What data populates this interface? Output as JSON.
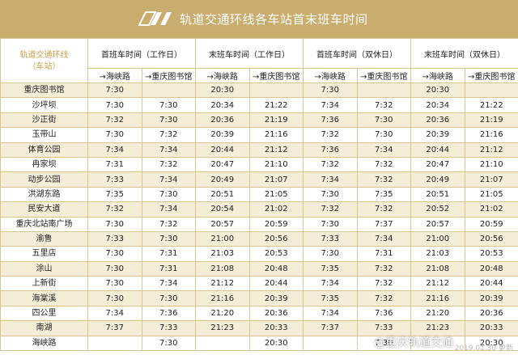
{
  "header": {
    "title": "轨道交通环线各车站首末班车时间"
  },
  "table": {
    "corner_title": "轨道交通环线",
    "corner_sub": "（车站）",
    "groups": [
      "首班车时间（工作日）",
      "末班车时间（工作日）",
      "首班车时间（双休日）",
      "末班车时间（双休日）"
    ],
    "directions": [
      "→海峡路",
      "→重庆图书馆"
    ],
    "rows": [
      [
        "重庆图书馆",
        "7:30",
        "",
        "20:30",
        "",
        "7:30",
        "",
        "20:30",
        ""
      ],
      [
        "沙坪坝",
        "7:30",
        "7:30",
        "20:34",
        "21:22",
        "7:34",
        "7:32",
        "20:34",
        "21:22"
      ],
      [
        "沙正街",
        "7:32",
        "7:30",
        "20:36",
        "21:19",
        "7:36",
        "7:30",
        "20:36",
        "21:19"
      ],
      [
        "玉带山",
        "7:30",
        "7:32",
        "20:39",
        "21:16",
        "7:32",
        "7:30",
        "20:39",
        "21:16"
      ],
      [
        "体育公园",
        "7:34",
        "7:34",
        "20:44",
        "21:12",
        "7:36",
        "7:34",
        "20:44",
        "21:12"
      ],
      [
        "冉家坝",
        "7:31",
        "7:32",
        "20:47",
        "21:10",
        "7:32",
        "7:32",
        "20:47",
        "21:10"
      ],
      [
        "动步公园",
        "7:33",
        "7:34",
        "20:49",
        "21:07",
        "7:34",
        "7:32",
        "20:49",
        "21:07"
      ],
      [
        "洪湖东路",
        "7:35",
        "7:30",
        "20:51",
        "21:05",
        "7:30",
        "7:35",
        "20:51",
        "21:05"
      ],
      [
        "民安大道",
        "7:32",
        "7:34",
        "20:54",
        "21:02",
        "7:32",
        "7:32",
        "20:52",
        "21:02"
      ],
      [
        "重庆北站南广场",
        "7:30",
        "7:32",
        "20:57",
        "20:59",
        "7:30",
        "7:37",
        "20:57",
        "20:59"
      ],
      [
        "渝鲁",
        "7:33",
        "7:30",
        "21:00",
        "20:56",
        "7:33",
        "7:34",
        "21:00",
        "20:56"
      ],
      [
        "五里店",
        "7:30",
        "7:31",
        "21:03",
        "20:53",
        "7:30",
        "7:31",
        "21:03",
        "20:53"
      ],
      [
        "涂山",
        "7:30",
        "7:31",
        "21:08",
        "20:48",
        "7:35",
        "7:32",
        "21:08",
        "20:48"
      ],
      [
        "上新街",
        "7:30",
        "7:34",
        "21:12",
        "20:44",
        "7:34",
        "7:32",
        "21:12",
        "20:44"
      ],
      [
        "海棠溪",
        "7:30",
        "7:30",
        "21:16",
        "20:39",
        "7:35",
        "7:32",
        "21:16",
        "20:39"
      ],
      [
        "四公里",
        "7:34",
        "7:36",
        "21:20",
        "20:36",
        "7:34",
        "7:36",
        "21:20",
        "20:36"
      ],
      [
        "南湖",
        "7:37",
        "7:33",
        "21:23",
        "20:33",
        "7:37",
        "7:33",
        "21:23",
        "20:33"
      ],
      [
        "海峡路",
        "",
        "7:30",
        "",
        "20:30",
        "",
        "7:30",
        "",
        "20:30"
      ]
    ]
  },
  "watermark": {
    "text": "@重庆轨道交通"
  },
  "footer": {
    "date": "2019.01.30 更新"
  },
  "colors": {
    "banner": "#c9ad6e",
    "accent": "#c8a24a",
    "stripe": "#f6edd8",
    "grid": "#d9c58f"
  }
}
